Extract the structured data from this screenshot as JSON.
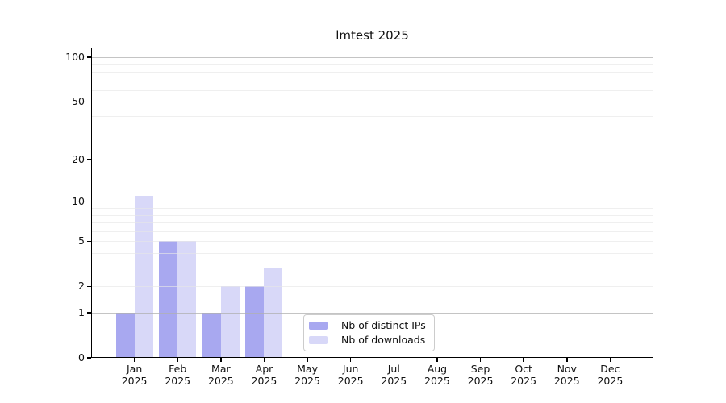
{
  "page": {
    "background": "#ffffff"
  },
  "chart_data": {
    "type": "bar",
    "title": "lmtest 2025",
    "x_categories": [
      "Jan",
      "Feb",
      "Mar",
      "Apr",
      "May",
      "Jun",
      "Jul",
      "Aug",
      "Sep",
      "Oct",
      "Nov",
      "Dec"
    ],
    "x_year_label": "2025",
    "series": [
      {
        "name": "Nb of distinct IPs",
        "color": "#a8a8f0",
        "values": [
          1,
          5,
          1,
          2,
          0,
          0,
          0,
          0,
          0,
          0,
          0,
          0
        ]
      },
      {
        "name": "Nb of downloads",
        "color": "#d8d8f8",
        "values": [
          11,
          5,
          2,
          3,
          0,
          0,
          0,
          0,
          0,
          0,
          0,
          0
        ]
      }
    ],
    "y_axis": {
      "scale": "log(1+x)",
      "tick_values": [
        0,
        1,
        2,
        5,
        10,
        20,
        50,
        100
      ],
      "tick_labels": [
        "0",
        "1",
        "2",
        "5",
        "10",
        "20",
        "50",
        "100"
      ],
      "major_gridlines": [
        1,
        10,
        100
      ],
      "minor_gridlines": [
        2,
        3,
        4,
        5,
        6,
        7,
        8,
        9,
        20,
        30,
        40,
        50,
        60,
        70,
        80,
        90
      ],
      "ylim": [
        0,
        117
      ]
    },
    "grid": "both",
    "legend": {
      "position": "inside-bottom-center",
      "entries": [
        "Nb of distinct IPs",
        "Nb of downloads"
      ]
    }
  }
}
